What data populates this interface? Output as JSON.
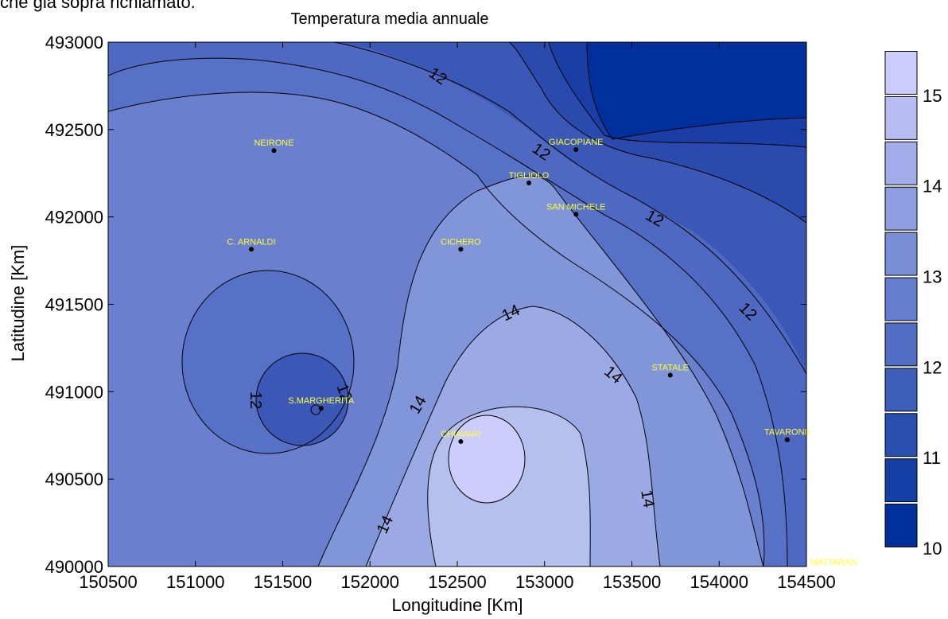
{
  "top_clipped_text": "che già sopra richiamato.",
  "chart_data": {
    "type": "contour",
    "title": "Temperatura media annuale",
    "xlabel": "Longitudine  [Km]",
    "ylabel": "Latitudine [Km]",
    "xlim": [
      150500,
      154500
    ],
    "ylim": [
      490000,
      493000
    ],
    "xticks": [
      "150500",
      "151000",
      "151500",
      "152000",
      "152500",
      "153000",
      "153500",
      "154000",
      "154500"
    ],
    "yticks": [
      "490000",
      "490500",
      "491000",
      "491500",
      "492000",
      "492500",
      "493000"
    ],
    "contour_labels": [
      "12",
      "12",
      "12",
      "12",
      "12",
      "12",
      "14",
      "14",
      "14",
      "14",
      "14",
      "12"
    ],
    "colorbar": {
      "min": 10,
      "max": 15.5,
      "step": 0.5,
      "ticks": [
        "10",
        "11",
        "12",
        "13",
        "14",
        "15"
      ],
      "color_low": "#00309c",
      "color_high": "#ccccff"
    },
    "stations": [
      {
        "name": "NEIRONE",
        "x": 151450,
        "y": 492380
      },
      {
        "name": "GIACOPIANE",
        "x": 153180,
        "y": 492385
      },
      {
        "name": "TIGLIOLO",
        "x": 152910,
        "y": 492195
      },
      {
        "name": "SAN MICHELE",
        "x": 153180,
        "y": 492015
      },
      {
        "name": "C. ARNALDI",
        "x": 151320,
        "y": 491815
      },
      {
        "name": "CICHERO",
        "x": 152520,
        "y": 491815
      },
      {
        "name": "STATALE",
        "x": 153720,
        "y": 491095
      },
      {
        "name": "S.MARGHERITA",
        "x": 151720,
        "y": 490905
      },
      {
        "name": "TAVARONE",
        "x": 154390,
        "y": 490725
      },
      {
        "name": "CHIAVARI",
        "x": 152520,
        "y": 490715
      },
      {
        "name": "MATTARAN",
        "x": 154500,
        "y": 490000
      }
    ],
    "station_label_color": "#ffff33"
  }
}
